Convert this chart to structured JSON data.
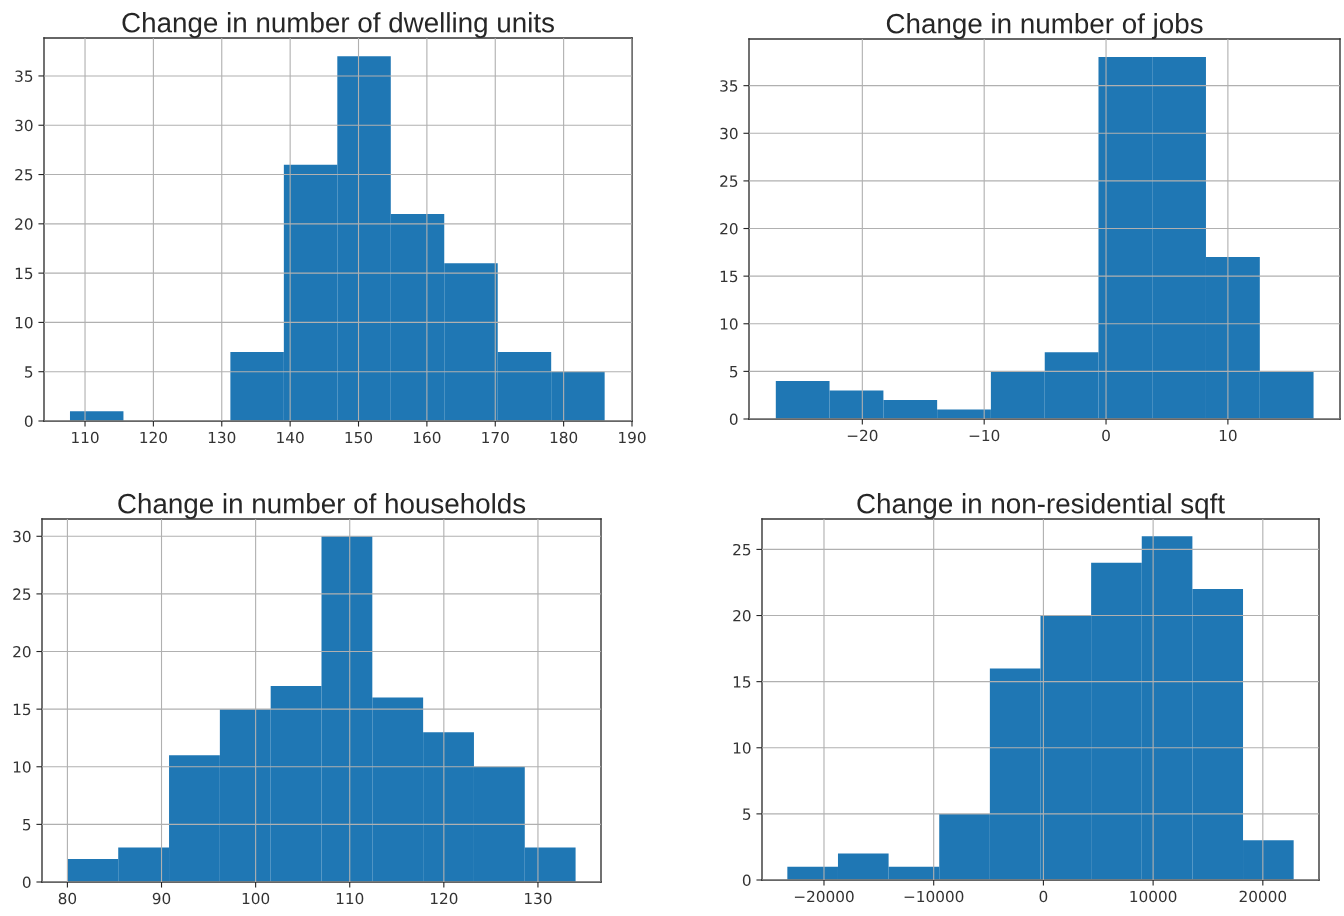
{
  "chart_data": [
    {
      "type": "histogram",
      "title": "Change in number of dwelling units",
      "color": "#1f77b4",
      "bins": [
        107.8,
        115.62,
        123.44,
        131.26,
        139.08,
        146.9,
        154.72,
        162.54,
        170.36,
        178.18,
        186.0
      ],
      "values": [
        1,
        0,
        0,
        7,
        26,
        37,
        21,
        16,
        7,
        5
      ],
      "xlim": [
        104,
        190
      ],
      "xticks": [
        110,
        120,
        130,
        140,
        150,
        160,
        170,
        180,
        190
      ],
      "ylim": [
        0,
        38.85
      ],
      "yticks": [
        0,
        5,
        10,
        15,
        20,
        25,
        30,
        35
      ],
      "grid": true
    },
    {
      "type": "histogram",
      "title": "Change in number of jobs",
      "color": "#1f77b4",
      "bins": [
        -27.1,
        -22.69,
        -18.27,
        -13.86,
        -9.45,
        -5.03,
        -0.62,
        3.79,
        8.2,
        12.62,
        17.03
      ],
      "values": [
        4,
        3,
        2,
        1,
        5,
        7,
        38,
        38,
        17,
        5
      ],
      "xlim": [
        -29.3,
        19.2
      ],
      "xticks": [
        {
          "value": -20,
          "label": "−20"
        },
        {
          "value": -10,
          "label": "−10"
        },
        0,
        10
      ],
      "ylim": [
        0,
        39.9
      ],
      "yticks": [
        0,
        5,
        10,
        15,
        20,
        25,
        30,
        35
      ],
      "grid": true
    },
    {
      "type": "histogram",
      "title": "Change in number of households",
      "color": "#1f77b4",
      "bins": [
        80,
        85.4,
        90.8,
        96.2,
        101.6,
        107,
        112.4,
        117.8,
        123.2,
        128.6,
        134
      ],
      "values": [
        2,
        3,
        11,
        15,
        17,
        30,
        16,
        13,
        10,
        3
      ],
      "xlim": [
        77.3,
        136.7
      ],
      "xticks": [
        80,
        90,
        100,
        110,
        120,
        130
      ],
      "ylim": [
        0,
        31.5
      ],
      "yticks": [
        0,
        5,
        10,
        15,
        20,
        25,
        30
      ],
      "grid": true
    },
    {
      "type": "histogram",
      "title": "Change in non-residential sqft",
      "color": "#1f77b4",
      "bins": [
        -23340,
        -18725,
        -14110,
        -9495,
        -4880,
        -265,
        4350,
        8965,
        13580,
        18195,
        22810
      ],
      "values": [
        1,
        2,
        1,
        5,
        16,
        20,
        24,
        26,
        22,
        3
      ],
      "xlim": [
        -25650,
        25120
      ],
      "xticks": [
        {
          "value": -20000,
          "label": "−20000"
        },
        {
          "value": -10000,
          "label": "−10000"
        },
        0,
        10000,
        20000
      ],
      "ylim": [
        0,
        27.3
      ],
      "yticks": [
        0,
        5,
        10,
        15,
        20,
        25
      ],
      "grid": true
    }
  ]
}
